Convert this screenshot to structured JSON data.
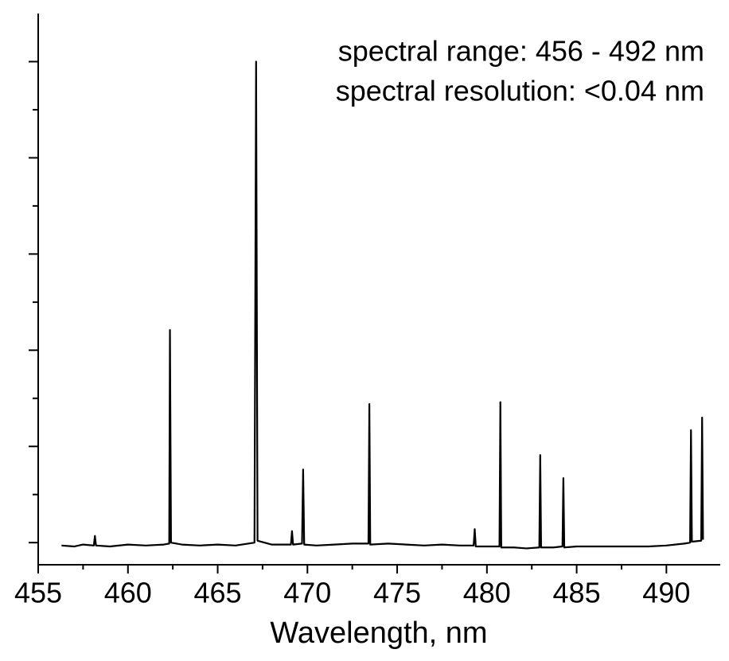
{
  "chart_data": {
    "type": "line",
    "annotations": [
      "spectral range: 456 - 492 nm",
      "spectral resolution: <0.04 nm"
    ],
    "x_label": "Wavelength, nm",
    "xlim": [
      455,
      493
    ],
    "xticks": [
      455,
      460,
      465,
      470,
      475,
      480,
      485,
      490
    ],
    "ylim": [
      -0.23,
      5.5
    ],
    "yticks": [
      0,
      1,
      2,
      3,
      4,
      5
    ],
    "ytick_labels": false,
    "series": [
      {
        "color": "#000000",
        "x": [
          456.3,
          457.0,
          457.5,
          458.1,
          458.16,
          458.22,
          459,
          460,
          461,
          462,
          462.3,
          462.34,
          462.4,
          463,
          464,
          465,
          466,
          467.05,
          467.14,
          467.22,
          468,
          469.08,
          469.14,
          469.2,
          469.7,
          469.76,
          469.82,
          470.5,
          471.5,
          472.5,
          473.4,
          473.45,
          473.5,
          474.5,
          475.5,
          476.5,
          477.5,
          478.5,
          479.26,
          479.32,
          479.38,
          480,
          480.7,
          480.75,
          480.8,
          481.5,
          482.2,
          482.92,
          482.97,
          483.02,
          483.7,
          484.21,
          484.26,
          484.31,
          485,
          486,
          487,
          488,
          489,
          490,
          491,
          491.32,
          491.37,
          491.42,
          491.94,
          491.99,
          492.04
        ],
        "values": [
          -0.03,
          -0.04,
          -0.02,
          -0.03,
          0.07,
          -0.03,
          -0.04,
          -0.02,
          -0.03,
          -0.02,
          -0.01,
          2.21,
          0.0,
          -0.02,
          -0.03,
          -0.02,
          -0.03,
          0.0,
          5.0,
          0.02,
          -0.02,
          -0.02,
          0.12,
          -0.02,
          -0.01,
          0.76,
          -0.02,
          -0.03,
          -0.02,
          -0.01,
          -0.01,
          1.44,
          -0.02,
          -0.01,
          -0.02,
          -0.03,
          -0.02,
          -0.03,
          -0.03,
          0.14,
          -0.04,
          -0.04,
          -0.04,
          1.46,
          -0.05,
          -0.05,
          -0.06,
          -0.05,
          0.91,
          -0.05,
          -0.05,
          -0.04,
          0.67,
          -0.05,
          -0.04,
          -0.04,
          -0.04,
          -0.04,
          -0.04,
          -0.03,
          -0.01,
          0.0,
          1.17,
          0.01,
          0.02,
          1.3,
          0.03
        ]
      }
    ]
  }
}
